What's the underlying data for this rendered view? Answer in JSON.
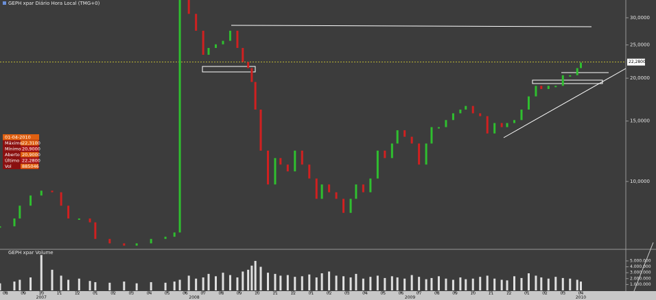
{
  "chart_data": {
    "type": "bar",
    "title": "GEPH xpar Diário Hora Local (TMG+0)",
    "volume_title": "GEPH xpar Volume",
    "log_scale": true,
    "up_color": "#2fbf2f",
    "down_color": "#d02020",
    "x": [
      -0.3,
      0.5,
      0.8,
      1.4,
      2.0,
      2.6,
      3.1,
      3.5,
      4.1,
      4.7,
      5.0,
      5.8,
      6.6,
      7.3,
      8.1,
      8.9,
      9.4,
      9.7,
      10.2,
      10.6,
      11.0,
      11.3,
      11.7,
      12.1,
      12.5,
      12.9,
      13.2,
      13.5,
      13.7,
      13.9,
      14.2,
      14.6,
      15.0,
      15.3,
      15.7,
      16.1,
      16.5,
      16.9,
      17.3,
      17.6,
      18.0,
      18.4,
      18.8,
      19.2,
      19.5,
      19.9,
      20.3,
      20.7,
      21.1,
      21.5,
      21.8,
      22.2,
      22.6,
      23.0,
      23.4,
      23.7,
      24.1,
      24.5,
      24.9,
      25.3,
      25.6,
      26.0,
      26.4,
      26.8,
      27.2,
      27.6,
      27.9,
      28.3,
      28.7,
      29.1,
      29.5,
      29.8,
      30.2,
      30.6,
      31.0,
      31.4,
      31.8,
      32.0
    ],
    "values": [
      7.4,
      7.8,
      8.5,
      9.1,
      9.4,
      9.3,
      8.5,
      7.8,
      7.8,
      7.6,
      6.8,
      6.6,
      6.5,
      6.6,
      6.8,
      6.9,
      7.1,
      33.8,
      30.8,
      27.5,
      23.4,
      24.5,
      25.1,
      25.7,
      27.5,
      24.5,
      22.3,
      21.4,
      19.5,
      16.2,
      12.3,
      9.8,
      11.7,
      11.2,
      10.7,
      12.3,
      11.2,
      10.2,
      8.9,
      9.8,
      9.3,
      8.9,
      8.1,
      8.9,
      9.8,
      9.3,
      10.2,
      12.3,
      11.7,
      12.9,
      14.1,
      13.5,
      12.9,
      11.2,
      12.9,
      14.4,
      14.4,
      15.1,
      15.8,
      16.2,
      16.6,
      15.8,
      15.5,
      13.8,
      14.8,
      14.4,
      14.8,
      15.1,
      16.2,
      17.7,
      19.0,
      18.6,
      19.0,
      19.0,
      20.4,
      20.4,
      21.4,
      22.2
    ],
    "volumes": [
      1200000,
      1500000,
      1800000,
      2200000,
      6000000,
      3500000,
      2500000,
      1800000,
      2000000,
      1600000,
      1400000,
      1300000,
      1500000,
      1200000,
      1400000,
      1300000,
      1500000,
      1800000,
      2500000,
      2000000,
      2200000,
      2800000,
      2400000,
      3000000,
      2600000,
      2200000,
      3200000,
      3500000,
      4200000,
      5000000,
      4000000,
      3000000,
      2800000,
      2500000,
      2600000,
      2300000,
      2400000,
      2700000,
      2200000,
      2900000,
      3200000,
      2500000,
      2400000,
      2200000,
      2800000,
      2000000,
      2300000,
      2500000,
      2100000,
      2400000,
      2200000,
      2000000,
      2600000,
      2300000,
      1900000,
      2100000,
      2400000,
      2000000,
      1800000,
      2200000,
      1900000,
      2000000,
      2300000,
      2500000,
      2000000,
      1800000,
      1700000,
      2400000,
      2100000,
      2900000,
      2500000,
      2200000,
      2000000,
      2300000,
      2100000,
      2000000,
      1800000,
      1500000
    ],
    "xlim": [
      -0.3,
      34.5
    ],
    "ylim": [
      6.4,
      33.8
    ],
    "vlim": [
      0,
      6500000
    ],
    "yticks": [
      {
        "value": 10,
        "label": "10,0000"
      },
      {
        "value": 15,
        "label": "15,0000"
      },
      {
        "value": 20,
        "label": "20,0000"
      },
      {
        "value": 25,
        "label": "25,0000"
      },
      {
        "value": 30,
        "label": "30,0000"
      }
    ],
    "vticks": [
      {
        "value": 1000000,
        "label": "1.000.000"
      },
      {
        "value": 2000000,
        "label": "2.000.000"
      },
      {
        "value": 3000000,
        "label": "3.000.000"
      },
      {
        "value": 4000000,
        "label": "4.000.000"
      },
      {
        "value": 5000000,
        "label": "5.000.000"
      }
    ],
    "xticks": [
      {
        "value": 0,
        "label": "08"
      },
      {
        "value": 1,
        "label": "09"
      },
      {
        "value": 2,
        "label": "10"
      },
      {
        "value": 3,
        "label": "11"
      },
      {
        "value": 4,
        "label": "12"
      },
      {
        "value": 5,
        "label": "01"
      },
      {
        "value": 6,
        "label": "02"
      },
      {
        "value": 7,
        "label": "03"
      },
      {
        "value": 8,
        "label": "04"
      },
      {
        "value": 9,
        "label": "05"
      },
      {
        "value": 10,
        "label": "06"
      },
      {
        "value": 11,
        "label": "07"
      },
      {
        "value": 12,
        "label": "08"
      },
      {
        "value": 13,
        "label": "09"
      },
      {
        "value": 14,
        "label": "10"
      },
      {
        "value": 15,
        "label": "11"
      },
      {
        "value": 16,
        "label": "12"
      },
      {
        "value": 17,
        "label": "01"
      },
      {
        "value": 18,
        "label": "02"
      },
      {
        "value": 19,
        "label": "03"
      },
      {
        "value": 20,
        "label": "04"
      },
      {
        "value": 21,
        "label": "05"
      },
      {
        "value": 22,
        "label": "06"
      },
      {
        "value": 23,
        "label": "07"
      },
      {
        "value": 24,
        "label": "08"
      },
      {
        "value": 25,
        "label": "09"
      },
      {
        "value": 26,
        "label": "10"
      },
      {
        "value": 27,
        "label": "11"
      },
      {
        "value": 28,
        "label": "12"
      },
      {
        "value": 29,
        "label": "01"
      },
      {
        "value": 30,
        "label": "02"
      },
      {
        "value": 31,
        "label": "03"
      },
      {
        "value": 32,
        "label": "04"
      }
    ],
    "year_ticks": [
      {
        "value": 2,
        "label": "2007"
      },
      {
        "value": 10.5,
        "label": "2008"
      },
      {
        "value": 22.5,
        "label": "2009"
      },
      {
        "value": 32,
        "label": "2010"
      }
    ],
    "last_price": {
      "value": 22.28,
      "label": "22,2800"
    },
    "info_box": {
      "date": "01-04-2010",
      "rows": [
        {
          "label": "Máximo",
          "value": "22,3100"
        },
        {
          "label": "Mínimo",
          "value": "20,9000"
        },
        {
          "label": "Aberto",
          "value": "20,9000"
        },
        {
          "label": "Último",
          "value": "22,2800"
        },
        {
          "label": "Vol",
          "value": "885046"
        }
      ]
    }
  }
}
